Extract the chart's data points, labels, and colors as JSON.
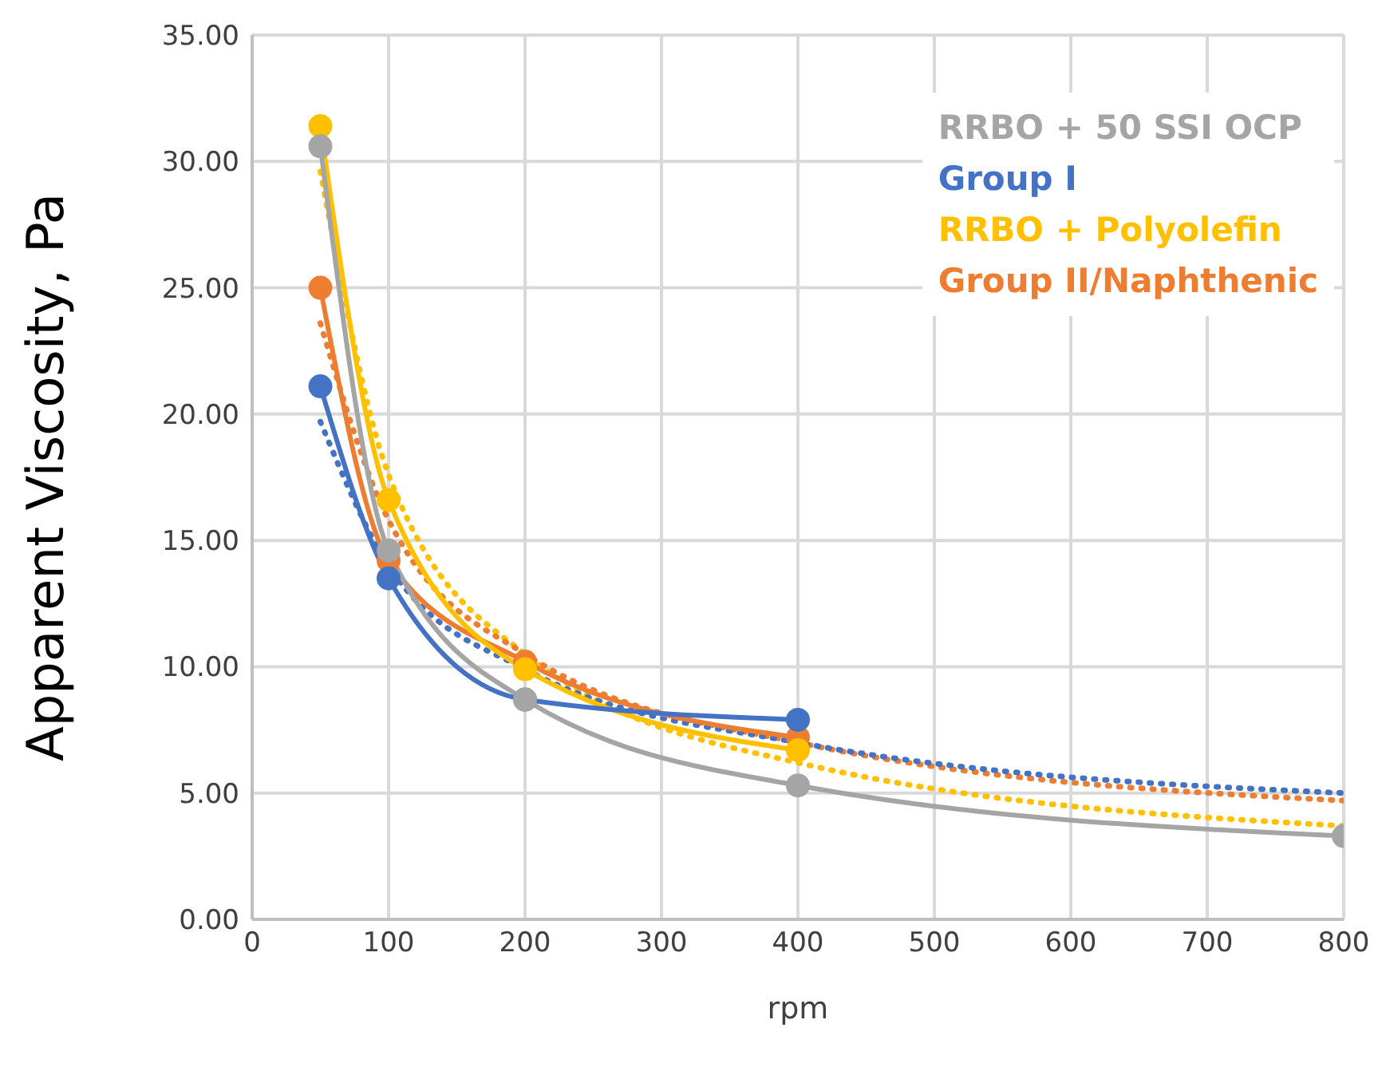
{
  "chart_data": {
    "type": "line",
    "xlabel": "rpm",
    "ylabel": "Apparent Viscosity, Pa",
    "xlim": [
      0,
      800
    ],
    "xticks": [
      0,
      100,
      200,
      300,
      400,
      500,
      600,
      700,
      800
    ],
    "ylim": [
      0,
      35
    ],
    "yticks": [
      {
        "value": 0,
        "label": "0.00"
      },
      {
        "value": 5,
        "label": "5.00"
      },
      {
        "value": 10,
        "label": "10.00"
      },
      {
        "value": 15,
        "label": "15.00"
      },
      {
        "value": 20,
        "label": "20.00"
      },
      {
        "value": 25,
        "label": "25.00"
      },
      {
        "value": 30,
        "label": "30.00"
      },
      {
        "value": 35,
        "label": "35.00"
      }
    ],
    "grid": true,
    "legend": "top right",
    "marker": "circle",
    "line_style": "solid",
    "series": [
      {
        "name": "RRBO + 50 SSI OCP",
        "color": "#a5a5a5",
        "x": [
          50,
          100,
          200,
          400,
          800
        ],
        "values": [
          30.6,
          14.6,
          8.7,
          5.3,
          3.3
        ]
      },
      {
        "name": "Group I",
        "color": "#4472c4",
        "x": [
          50,
          100,
          200,
          400
        ],
        "values": [
          21.1,
          13.5,
          8.7,
          7.9
        ]
      },
      {
        "name": "RRBO + Polyolefin",
        "color": "#ffc000",
        "x": [
          50,
          100,
          200,
          400
        ],
        "values": [
          31.4,
          16.6,
          9.9,
          6.7
        ]
      },
      {
        "name": "Group II/Naphthenic",
        "color": "#ed7d31",
        "x": [
          50,
          100,
          200,
          400
        ],
        "values": [
          25.0,
          14.2,
          10.2,
          7.2
        ]
      },
      {
        "color": "#4472c4",
        "x": [
          50,
          100,
          200,
          400,
          800
        ],
        "values": [
          19.7,
          14.0,
          9.9,
          7.0,
          5.0
        ],
        "marker": "none",
        "line_style": "dotted"
      },
      {
        "color": "#ed7d31",
        "x": [
          50,
          100,
          200,
          400,
          800
        ],
        "values": [
          23.6,
          15.8,
          10.5,
          7.0,
          4.7
        ],
        "marker": "none",
        "line_style": "dotted"
      },
      {
        "color": "#ffc000",
        "x": [
          50,
          100,
          200,
          400,
          800
        ],
        "values": [
          29.6,
          17.6,
          10.5,
          6.2,
          3.7
        ],
        "marker": "none",
        "line_style": "dotted"
      }
    ]
  }
}
